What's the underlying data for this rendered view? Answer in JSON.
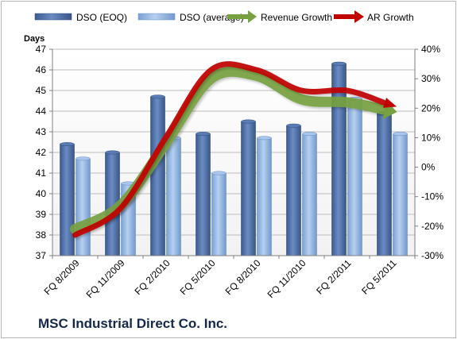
{
  "chart_data": {
    "type": "bar",
    "title": "MSC Industrial Direct Co. Inc.",
    "ylabel": "Days",
    "categories": [
      "FQ 8/2009",
      "FQ 11/2009",
      "FQ 2/2010",
      "FQ 5/2010",
      "FQ 8/2010",
      "FQ 11/2010",
      "FQ 2/2011",
      "FQ 5/2011"
    ],
    "ylim": [
      37,
      47
    ],
    "y_ticks": [
      37,
      38,
      39,
      40,
      41,
      42,
      43,
      44,
      45,
      46,
      47
    ],
    "y2lim": [
      -30,
      40
    ],
    "y2_ticks": [
      "-30%",
      "-20%",
      "-10%",
      "0%",
      "10%",
      "20%",
      "30%",
      "40%"
    ],
    "y2_values": [
      -30,
      -20,
      -10,
      0,
      10,
      20,
      30,
      40
    ],
    "series": [
      {
        "name": "DSO (EOQ)",
        "type": "bar",
        "axis": "left",
        "color": "#4f6fa6",
        "values": [
          42.4,
          42.0,
          44.7,
          42.9,
          43.5,
          43.3,
          46.3,
          43.9
        ]
      },
      {
        "name": "DSO (average)",
        "type": "bar",
        "axis": "left",
        "color": "#8fb3e0",
        "values": [
          41.7,
          40.5,
          42.7,
          41.0,
          42.7,
          42.9,
          44.6,
          42.9
        ]
      },
      {
        "name": "Revenue Growth",
        "type": "line",
        "axis": "right",
        "color": "#77a040",
        "values": [
          -21,
          -13,
          8,
          30,
          31,
          23,
          22,
          19
        ]
      },
      {
        "name": "AR Growth",
        "type": "line",
        "axis": "right",
        "color": "#c00000",
        "values": [
          -23,
          -14,
          10,
          33,
          33,
          26,
          26,
          21
        ]
      }
    ],
    "legend": "top",
    "grid": true
  }
}
